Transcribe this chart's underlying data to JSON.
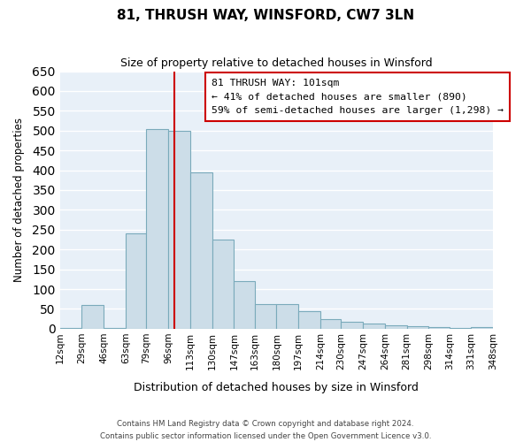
{
  "title": "81, THRUSH WAY, WINSFORD, CW7 3LN",
  "subtitle": "Size of property relative to detached houses in Winsford",
  "xlabel": "Distribution of detached houses by size in Winsford",
  "ylabel": "Number of detached properties",
  "bin_edges": [
    12,
    29,
    46,
    63,
    79,
    96,
    113,
    130,
    147,
    163,
    180,
    197,
    214,
    230,
    247,
    264,
    281,
    298,
    314,
    331,
    348
  ],
  "bin_labels": [
    "12sqm",
    "29sqm",
    "46sqm",
    "63sqm",
    "79sqm",
    "96sqm",
    "113sqm",
    "130sqm",
    "147sqm",
    "163sqm",
    "180sqm",
    "197sqm",
    "214sqm",
    "230sqm",
    "247sqm",
    "264sqm",
    "281sqm",
    "298sqm",
    "314sqm",
    "331sqm",
    "348sqm"
  ],
  "bar_heights": [
    2,
    60,
    2,
    240,
    505,
    500,
    395,
    225,
    120,
    63,
    63,
    45,
    25,
    18,
    14,
    8,
    6,
    3,
    2,
    5
  ],
  "bar_color": "#ccdde8",
  "bar_edge_color": "#7aaabb",
  "property_line_x": 101,
  "property_line_color": "#cc0000",
  "ylim": [
    0,
    650
  ],
  "yticks": [
    0,
    50,
    100,
    150,
    200,
    250,
    300,
    350,
    400,
    450,
    500,
    550,
    600,
    650
  ],
  "annotation_text": "81 THRUSH WAY: 101sqm\n← 41% of detached houses are smaller (890)\n59% of semi-detached houses are larger (1,298) →",
  "annotation_box_color": "#ffffff",
  "annotation_box_edge": "#cc0000",
  "footer_line1": "Contains HM Land Registry data © Crown copyright and database right 2024.",
  "footer_line2": "Contains public sector information licensed under the Open Government Licence v3.0.",
  "bg_color": "#e8f0f8"
}
